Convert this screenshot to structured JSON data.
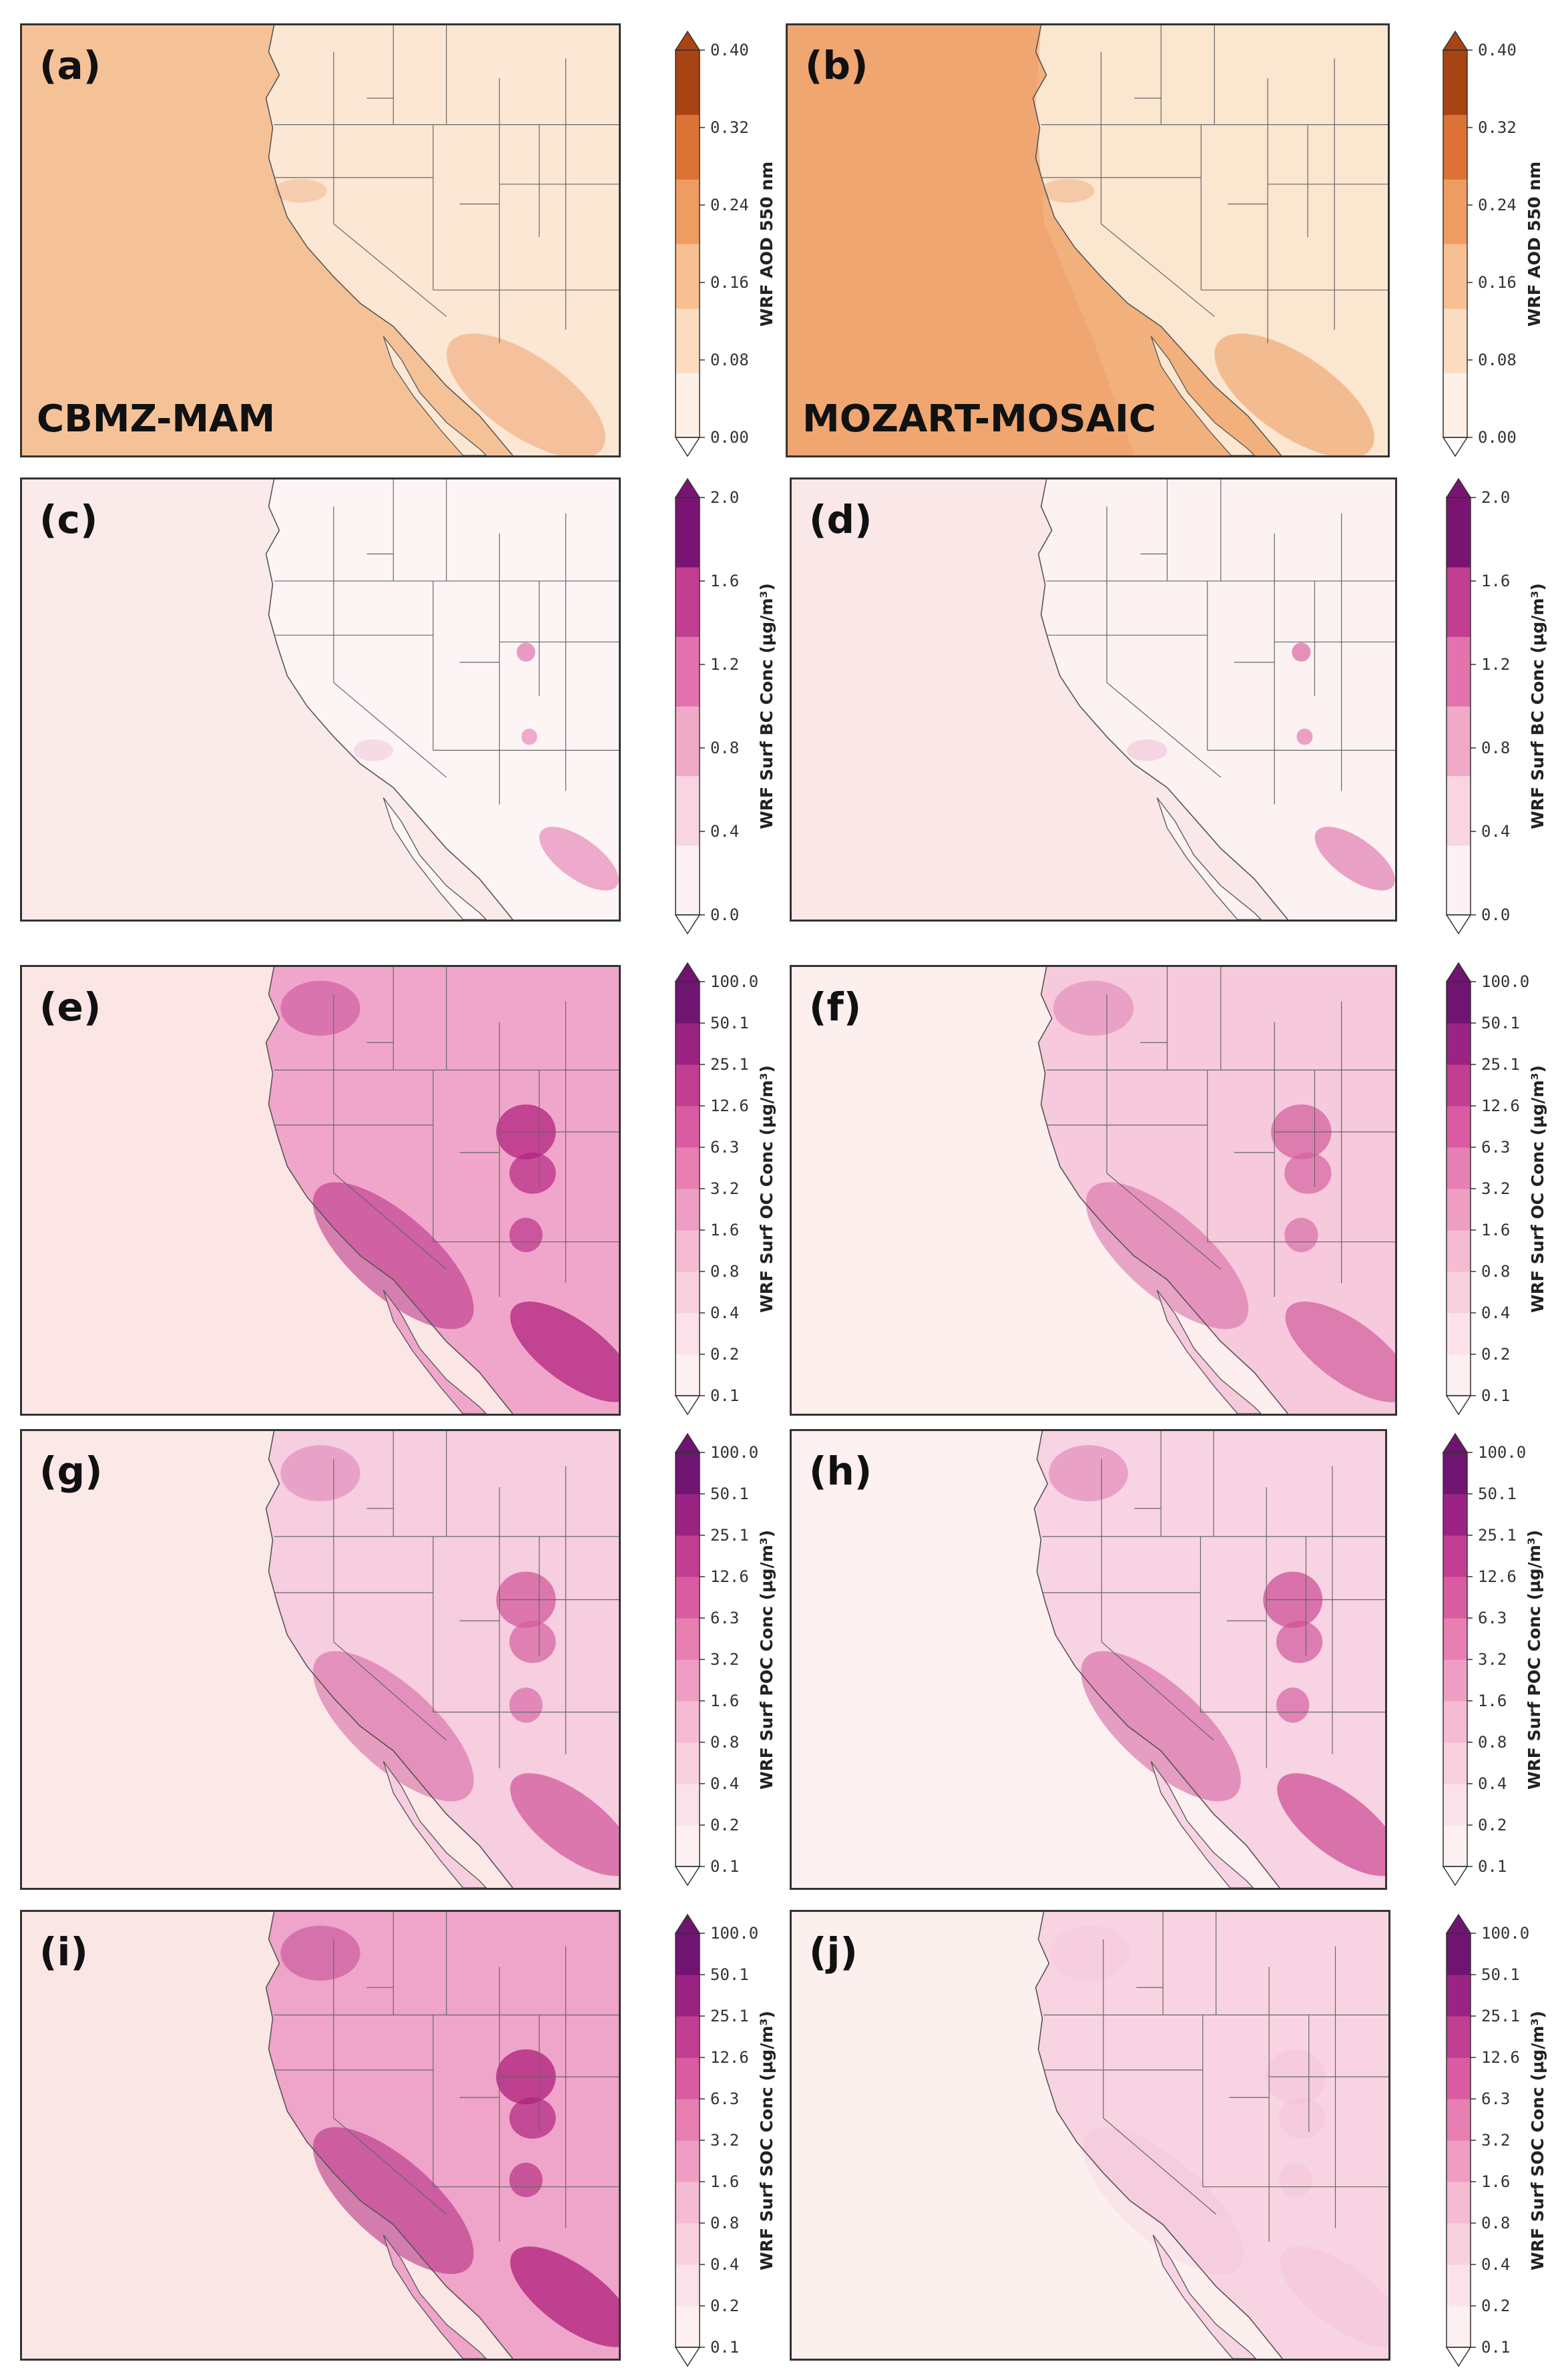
{
  "panels": [
    {
      "label": "(a)",
      "scheme": "CBMZ-MAM",
      "variable": "aod",
      "colors": {
        "ocean": "#f5c297",
        "land": "#fbe7d3",
        "hot": "#f0a878"
      }
    },
    {
      "label": "(b)",
      "scheme": "MOZART-MOSAIC",
      "variable": "aod",
      "colors": {
        "ocean": "#f2b07d",
        "land": "#fbe6d0",
        "hot": "#ee9e66"
      }
    },
    {
      "label": "(c)",
      "scheme": "",
      "variable": "bc",
      "colors": {
        "ocean": "#fbeaea",
        "land": "#fdf5f5",
        "hot": "#e58ab8"
      }
    },
    {
      "label": "(d)",
      "scheme": "",
      "variable": "bc",
      "colors": {
        "ocean": "#fae8e8",
        "land": "#fcf2f2",
        "hot": "#e07fb2"
      }
    },
    {
      "label": "(e)",
      "scheme": "",
      "variable": "oc",
      "colors": {
        "ocean": "#fbe5e5",
        "land": "#f0a6cb",
        "hot": "#b3227f"
      }
    },
    {
      "label": "(f)",
      "scheme": "",
      "variable": "oc",
      "colors": {
        "ocean": "#fcefee",
        "land": "#f6c9dc",
        "hot": "#d4619f"
      }
    },
    {
      "label": "(g)",
      "scheme": "",
      "variable": "poc",
      "colors": {
        "ocean": "#fbe9e8",
        "land": "#f7cde0",
        "hot": "#d35a9c"
      }
    },
    {
      "label": "(h)",
      "scheme": "",
      "variable": "poc",
      "colors": {
        "ocean": "#fcf1f0",
        "land": "#f8d3e3",
        "hot": "#cf5197"
      }
    },
    {
      "label": "(i)",
      "scheme": "",
      "variable": "soc",
      "colors": {
        "ocean": "#fbe6e6",
        "land": "#efa4c9",
        "hot": "#ad1f7b"
      }
    },
    {
      "label": "(j)",
      "scheme": "",
      "variable": "soc",
      "colors": {
        "ocean": "#fcf0ef",
        "land": "#f8d3e2",
        "hot": "#f0b2cf"
      }
    }
  ],
  "colorbars": {
    "aod": {
      "label": "WRF AOD 550 nm",
      "ticks": [
        "0.00",
        "0.08",
        "0.16",
        "0.24",
        "0.32",
        "0.40"
      ],
      "colors": [
        "#fdf1e6",
        "#fbdcc0",
        "#f7bf92",
        "#ef9c62",
        "#dc7236",
        "#a84414"
      ]
    },
    "bc": {
      "label": "WRF Surf BC Conc (µg/m³)",
      "ticks": [
        "0.0",
        "0.4",
        "0.8",
        "1.2",
        "1.6",
        "2.0"
      ],
      "colors": [
        "#fdf1f3",
        "#f9d4e1",
        "#f1a9c8",
        "#e273ad",
        "#c13e92",
        "#7a1472"
      ]
    },
    "oc": {
      "label": "WRF Surf OC Conc (µg/m³)",
      "ticks": [
        "0.1",
        "0.2",
        "0.4",
        "0.8",
        "1.6",
        "3.2",
        "6.3",
        "12.6",
        "25.1",
        "50.1",
        "100.0"
      ],
      "colors": [
        "#fdf0f1",
        "#fbe2e8",
        "#f8d0de",
        "#f4bbd2",
        "#ef9ec3",
        "#e77fb3",
        "#d95ba2",
        "#c13e92",
        "#9b2384",
        "#701471"
      ]
    },
    "poc": {
      "label": "WRF Surf POC Conc (µg/m³)",
      "ticks": [
        "0.1",
        "0.2",
        "0.4",
        "0.8",
        "1.6",
        "3.2",
        "6.3",
        "12.6",
        "25.1",
        "50.1",
        "100.0"
      ],
      "colors": [
        "#fdf0f1",
        "#fbe2e8",
        "#f8d0de",
        "#f4bbd2",
        "#ef9ec3",
        "#e77fb3",
        "#d95ba2",
        "#c13e92",
        "#9b2384",
        "#701471"
      ]
    },
    "soc": {
      "label": "WRF Surf SOC Conc (µg/m³)",
      "ticks": [
        "0.1",
        "0.2",
        "0.4",
        "0.8",
        "1.6",
        "3.2",
        "6.3",
        "12.6",
        "25.1",
        "50.1",
        "100.0"
      ],
      "colors": [
        "#fdf0f1",
        "#fbe2e8",
        "#f8d0de",
        "#f4bbd2",
        "#ef9ec3",
        "#e77fb3",
        "#d95ba2",
        "#c13e92",
        "#9b2384",
        "#701471"
      ]
    }
  }
}
